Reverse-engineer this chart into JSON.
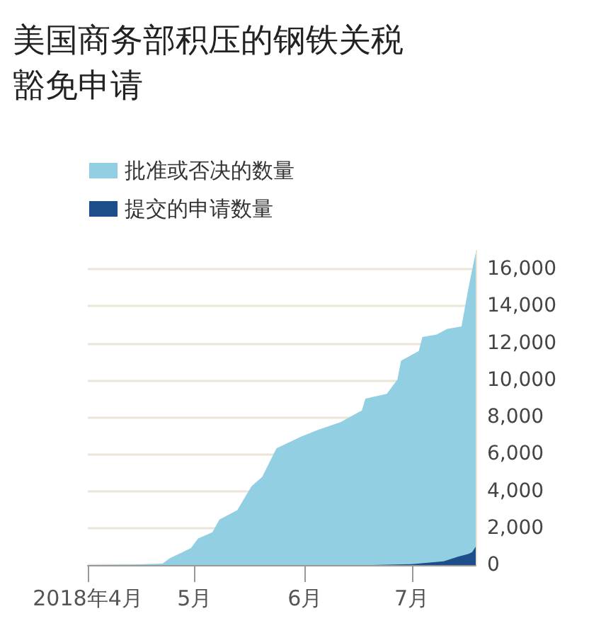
{
  "chart_data": {
    "type": "area",
    "title": "美国商务部积压的钢铁关税豁免申请",
    "x": [
      "2018-04-01",
      "2018-04-15",
      "2018-04-22",
      "2018-04-24",
      "2018-04-30",
      "2018-05-02",
      "2018-05-06",
      "2018-05-08",
      "2018-05-13",
      "2018-05-17",
      "2018-05-20",
      "2018-05-24",
      "2018-05-31",
      "2018-06-05",
      "2018-06-11",
      "2018-06-17",
      "2018-06-18",
      "2018-06-24",
      "2018-06-27",
      "2018-06-28",
      "2018-07-03",
      "2018-07-04",
      "2018-07-08",
      "2018-07-11",
      "2018-07-15",
      "2018-07-17",
      "2018-07-19"
    ],
    "series": [
      {
        "name": "批准或否决的数量",
        "color": "#93cfe3",
        "values": [
          0,
          30,
          80,
          360,
          920,
          1440,
          1770,
          2460,
          2970,
          4260,
          4770,
          6310,
          6950,
          7330,
          7720,
          8360,
          9000,
          9260,
          10030,
          11050,
          11570,
          12330,
          12460,
          12770,
          12900,
          15030,
          16900
        ]
      },
      {
        "name": "提交的申请数量",
        "color": "#1d4e89",
        "x": [
          "2018-06-20",
          "2018-07-01",
          "2018-07-10",
          "2018-07-14",
          "2018-07-17",
          "2018-07-18",
          "2018-07-19"
        ],
        "values": [
          0,
          50,
          200,
          450,
          600,
          700,
          1000
        ]
      }
    ],
    "xlim": [
      "2018-04-01",
      "2018-07-19"
    ],
    "xticks": [
      {
        "value": "2018-04-01",
        "label": "2018年4月"
      },
      {
        "value": "2018-05-01",
        "label": "5月"
      },
      {
        "value": "2018-06-01",
        "label": "6月"
      },
      {
        "value": "2018-07-01",
        "label": "7月"
      }
    ],
    "ylim": [
      0,
      17000
    ],
    "yticks": [
      {
        "value": 0,
        "label": "0"
      },
      {
        "value": 2000,
        "label": "2,000"
      },
      {
        "value": 4000,
        "label": "4,000"
      },
      {
        "value": 6000,
        "label": "6,000"
      },
      {
        "value": 8000,
        "label": "8,000"
      },
      {
        "value": 10000,
        "label": "10,000"
      },
      {
        "value": 12000,
        "label": "12,000"
      },
      {
        "value": 14000,
        "label": "14,000"
      },
      {
        "value": 16000,
        "label": "16,000"
      }
    ],
    "grid": "y",
    "legend": "top left"
  }
}
